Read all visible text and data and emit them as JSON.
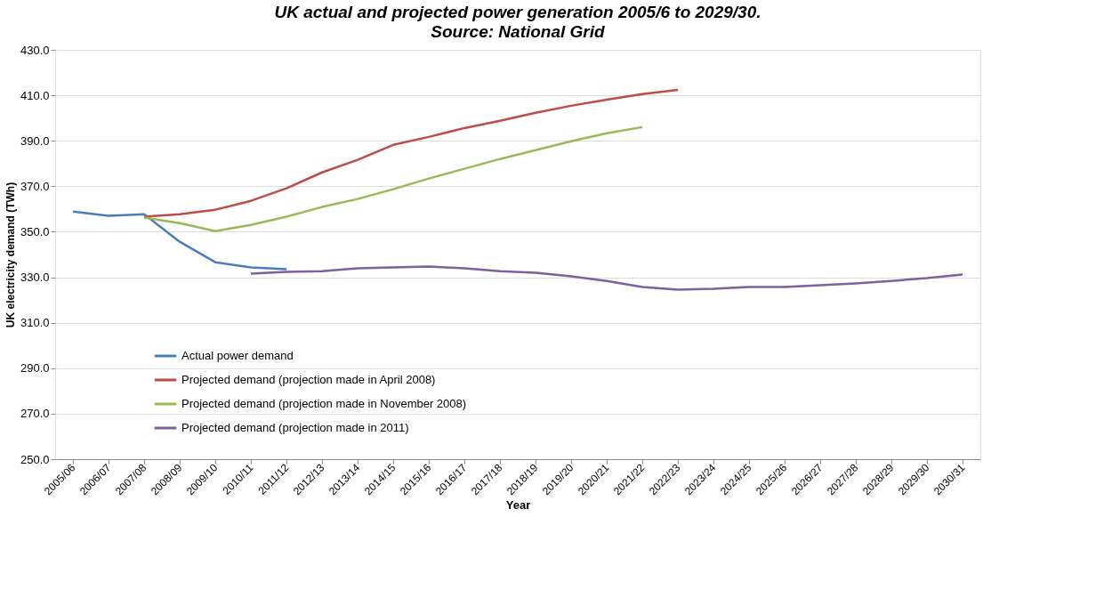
{
  "chart_data": {
    "type": "line",
    "title": "UK actual and projected power generation 2005/6 to 2029/30.",
    "subtitle": "Source: National Grid",
    "xlabel": "Year",
    "ylabel": "UK electricity demand (TWh)",
    "categories": [
      "2005/06",
      "2006/07",
      "2007/08",
      "2008/09",
      "2009/10",
      "2010/11",
      "2011/12",
      "2012/13",
      "2013/14",
      "2014/15",
      "2015/16",
      "2016/17",
      "2017/18",
      "2018/19",
      "2019/20",
      "2020/21",
      "2021/22",
      "2022/23",
      "2023/24",
      "2024/25",
      "2025/26",
      "2026/27",
      "2027/28",
      "2028/29",
      "2029/30",
      "2030/31"
    ],
    "series": [
      {
        "name": "Actual power demand",
        "color": "#4a7ebb",
        "values": [
          358.9,
          357.0,
          357.7,
          345.6,
          336.6,
          334.3,
          333.5,
          null,
          null,
          null,
          null,
          null,
          null,
          null,
          null,
          null,
          null,
          null,
          null,
          null,
          null,
          null,
          null,
          null,
          null,
          null
        ]
      },
      {
        "name": "Projected demand (projection made in April 2008)",
        "color": "#be4b48",
        "values": [
          null,
          null,
          356.6,
          357.7,
          359.7,
          363.6,
          369.1,
          376.1,
          381.6,
          388.2,
          391.7,
          395.6,
          398.8,
          402.3,
          405.4,
          408.1,
          410.5,
          412.4,
          null,
          null,
          null,
          null,
          null,
          null,
          null,
          null
        ]
      },
      {
        "name": "Projected demand (projection made in November 2008)",
        "color": "#98b954",
        "values": [
          null,
          null,
          356.2,
          353.8,
          350.3,
          353.0,
          356.6,
          360.9,
          364.4,
          368.7,
          373.4,
          377.7,
          382.0,
          385.9,
          389.8,
          393.3,
          396.0,
          null,
          null,
          null,
          null,
          null,
          null,
          null,
          null,
          null
        ]
      },
      {
        "name": "Projected demand (projection made in 2011)",
        "color": "#7d60a0",
        "values": [
          null,
          null,
          null,
          null,
          null,
          331.6,
          332.4,
          332.7,
          333.9,
          334.3,
          334.7,
          333.9,
          332.7,
          332.0,
          330.4,
          328.4,
          325.7,
          324.5,
          324.9,
          325.7,
          325.7,
          326.5,
          327.3,
          328.4,
          329.6,
          331.2
        ]
      }
    ],
    "ylim": [
      250,
      430
    ],
    "yticks": [
      {
        "value": 250,
        "label": "250.0"
      },
      {
        "value": 270,
        "label": "270.0"
      },
      {
        "value": 290,
        "label": "290.0"
      },
      {
        "value": 310,
        "label": "310.0"
      },
      {
        "value": 330,
        "label": "330.0"
      },
      {
        "value": 350,
        "label": "350.0"
      },
      {
        "value": 370,
        "label": "370.0"
      },
      {
        "value": 390,
        "label": "390.0"
      },
      {
        "value": 410,
        "label": "410.0"
      },
      {
        "value": 430,
        "label": "430.0"
      }
    ],
    "grid": "y",
    "legend": "bottom left",
    "marker": "none",
    "line_style": "solid"
  }
}
